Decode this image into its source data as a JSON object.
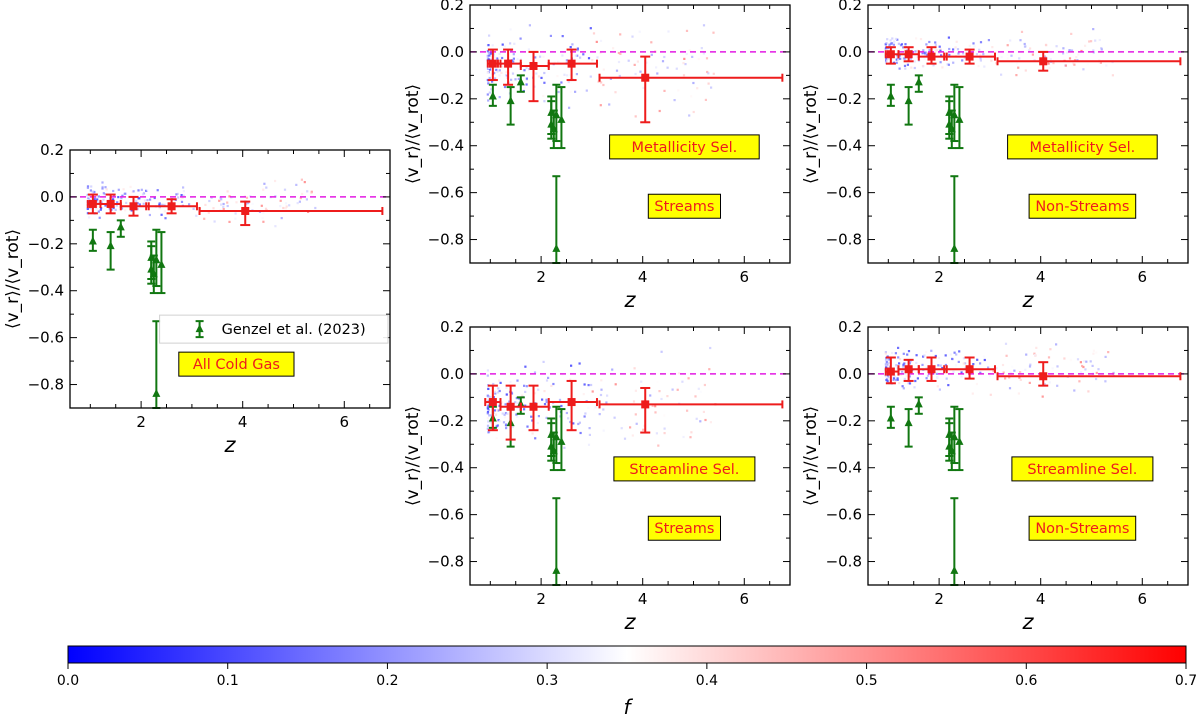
{
  "figure": {
    "ylabel": "⟨v_r⟩/⟨v_rot⟩",
    "xlabel": "z",
    "legend_label": "Genzel et al. (2023)",
    "legend_placement": "center-right",
    "reference_line": {
      "y": 0.0,
      "color": "#e31ae3",
      "style": "dashed"
    }
  },
  "colorbar": {
    "label": "f",
    "min": 0.0,
    "max": 0.7,
    "ticks": [
      0.0,
      0.1,
      0.2,
      0.3,
      0.4,
      0.5,
      0.6,
      0.7
    ],
    "tick_labels": [
      "0.0",
      "0.1",
      "0.2",
      "0.3",
      "0.4",
      "0.5",
      "0.6",
      "0.7"
    ],
    "colors": {
      "low": "#0000ff",
      "mid": "#ffffff",
      "high": "#ff0000"
    }
  },
  "colors": {
    "simulation": "#ee1c1c",
    "observation": "#117711",
    "tag_fill": "#ffff00",
    "tag_text": "#ee1c1c"
  },
  "chart_data": [
    {
      "type": "scatter",
      "id": "all",
      "tags": [
        "All Cold Gas"
      ],
      "show_legend": true,
      "ylim": [
        -0.9,
        0.2
      ],
      "xlim": [
        0.6,
        6.9
      ],
      "xticks": [
        2,
        4,
        6
      ],
      "xtick_labels": [
        "2",
        "4",
        "6"
      ],
      "yticks": [
        -0.8,
        -0.6,
        -0.4,
        -0.2,
        0.0,
        0.2
      ],
      "ytick_labels": [
        "−0.8",
        "−0.6",
        "−0.4",
        "−0.2",
        "0.0",
        "0.2"
      ],
      "cloud": {
        "center": -0.02,
        "spread": 0.03
      },
      "binned": [
        {
          "x": 1.05,
          "y": -0.03,
          "xlo": 0.95,
          "xhi": 1.2,
          "ylo": -0.07,
          "yhi": 0.01
        },
        {
          "x": 1.4,
          "y": -0.03,
          "xlo": 1.2,
          "xhi": 1.6,
          "ylo": -0.07,
          "yhi": 0.01
        },
        {
          "x": 1.85,
          "y": -0.04,
          "xlo": 1.6,
          "xhi": 2.15,
          "ylo": -0.08,
          "yhi": 0.0
        },
        {
          "x": 2.6,
          "y": -0.04,
          "xlo": 2.1,
          "xhi": 3.1,
          "ylo": -0.07,
          "yhi": -0.01
        },
        {
          "x": 4.05,
          "y": -0.06,
          "xlo": 3.15,
          "xhi": 6.75,
          "ylo": -0.12,
          "yhi": -0.02
        }
      ]
    },
    {
      "type": "scatter",
      "id": "metal-streams",
      "tags": [
        "Metallicity Sel.",
        "Streams"
      ],
      "show_legend": false,
      "ylim": [
        -0.9,
        0.2
      ],
      "xlim": [
        0.6,
        6.9
      ],
      "xticks": [
        2,
        4,
        6
      ],
      "xtick_labels": [
        "2",
        "4",
        "6"
      ],
      "yticks": [
        -0.8,
        -0.6,
        -0.4,
        -0.2,
        0.0,
        0.2
      ],
      "ytick_labels": [
        "−0.8",
        "−0.6",
        "−0.4",
        "−0.2",
        "0.0",
        "0.2"
      ],
      "cloud": {
        "center": -0.06,
        "spread": 0.06
      },
      "binned": [
        {
          "x": 1.05,
          "y": -0.05,
          "xlo": 0.95,
          "xhi": 1.2,
          "ylo": -0.12,
          "yhi": 0.01
        },
        {
          "x": 1.35,
          "y": -0.05,
          "xlo": 1.15,
          "xhi": 1.6,
          "ylo": -0.14,
          "yhi": 0.01
        },
        {
          "x": 1.85,
          "y": -0.06,
          "xlo": 1.6,
          "xhi": 2.15,
          "ylo": -0.21,
          "yhi": 0.0
        },
        {
          "x": 2.6,
          "y": -0.05,
          "xlo": 2.15,
          "xhi": 3.1,
          "ylo": -0.12,
          "yhi": 0.01
        },
        {
          "x": 4.05,
          "y": -0.11,
          "xlo": 3.15,
          "xhi": 6.75,
          "ylo": -0.3,
          "yhi": -0.02
        }
      ]
    },
    {
      "type": "scatter",
      "id": "metal-nonstreams",
      "tags": [
        "Metallicity Sel.",
        "Non-Streams"
      ],
      "show_legend": false,
      "ylim": [
        -0.9,
        0.2
      ],
      "xlim": [
        0.6,
        6.9
      ],
      "xticks": [
        2,
        4,
        6
      ],
      "xtick_labels": [
        "2",
        "4",
        "6"
      ],
      "yticks": [
        -0.8,
        -0.6,
        -0.4,
        -0.2,
        0.0,
        0.2
      ],
      "ytick_labels": [
        "−0.8",
        "−0.6",
        "−0.4",
        "−0.2",
        "0.0",
        "0.2"
      ],
      "cloud": {
        "center": -0.01,
        "spread": 0.03
      },
      "binned": [
        {
          "x": 1.05,
          "y": -0.01,
          "xlo": 0.95,
          "xhi": 1.2,
          "ylo": -0.05,
          "yhi": 0.02
        },
        {
          "x": 1.4,
          "y": -0.01,
          "xlo": 1.2,
          "xhi": 1.6,
          "ylo": -0.04,
          "yhi": 0.02
        },
        {
          "x": 1.85,
          "y": -0.02,
          "xlo": 1.6,
          "xhi": 2.15,
          "ylo": -0.05,
          "yhi": 0.02
        },
        {
          "x": 2.6,
          "y": -0.02,
          "xlo": 2.1,
          "xhi": 3.1,
          "ylo": -0.05,
          "yhi": 0.01
        },
        {
          "x": 4.05,
          "y": -0.04,
          "xlo": 3.15,
          "xhi": 6.75,
          "ylo": -0.08,
          "yhi": 0.0
        }
      ]
    },
    {
      "type": "scatter",
      "id": "stream-streams",
      "tags": [
        "Streamline Sel.",
        "Streams"
      ],
      "show_legend": false,
      "ylim": [
        -0.9,
        0.2
      ],
      "xlim": [
        0.6,
        6.9
      ],
      "xticks": [
        2,
        4,
        6
      ],
      "xtick_labels": [
        "2",
        "4",
        "6"
      ],
      "yticks": [
        -0.8,
        -0.6,
        -0.4,
        -0.2,
        0.0,
        0.2
      ],
      "ytick_labels": [
        "−0.8",
        "−0.6",
        "−0.4",
        "−0.2",
        "0.0",
        "0.2"
      ],
      "cloud": {
        "center": -0.13,
        "spread": 0.06
      },
      "binned": [
        {
          "x": 1.05,
          "y": -0.12,
          "xlo": 0.9,
          "xhi": 1.2,
          "ylo": -0.24,
          "yhi": -0.05
        },
        {
          "x": 1.4,
          "y": -0.14,
          "xlo": 1.2,
          "xhi": 1.6,
          "ylo": -0.28,
          "yhi": -0.05
        },
        {
          "x": 1.85,
          "y": -0.14,
          "xlo": 1.6,
          "xhi": 2.15,
          "ylo": -0.24,
          "yhi": -0.05
        },
        {
          "x": 2.6,
          "y": -0.12,
          "xlo": 2.15,
          "xhi": 3.1,
          "ylo": -0.24,
          "yhi": -0.03
        },
        {
          "x": 4.05,
          "y": -0.13,
          "xlo": 3.15,
          "xhi": 6.75,
          "ylo": -0.25,
          "yhi": -0.06
        }
      ]
    },
    {
      "type": "scatter",
      "id": "stream-nonstreams",
      "tags": [
        "Streamline Sel.",
        "Non-Streams"
      ],
      "show_legend": false,
      "ylim": [
        -0.9,
        0.2
      ],
      "xlim": [
        0.6,
        6.9
      ],
      "xticks": [
        2,
        4,
        6
      ],
      "xtick_labels": [
        "2",
        "4",
        "6"
      ],
      "yticks": [
        -0.8,
        -0.6,
        -0.4,
        -0.2,
        0.0,
        0.2
      ],
      "ytick_labels": [
        "−0.8",
        "−0.6",
        "−0.4",
        "−0.2",
        "0.0",
        "0.2"
      ],
      "cloud": {
        "center": 0.02,
        "spread": 0.04
      },
      "binned": [
        {
          "x": 1.05,
          "y": 0.01,
          "xlo": 0.95,
          "xhi": 1.2,
          "ylo": -0.04,
          "yhi": 0.07
        },
        {
          "x": 1.4,
          "y": 0.02,
          "xlo": 1.2,
          "xhi": 1.6,
          "ylo": -0.03,
          "yhi": 0.06
        },
        {
          "x": 1.85,
          "y": 0.02,
          "xlo": 1.6,
          "xhi": 2.15,
          "ylo": -0.03,
          "yhi": 0.07
        },
        {
          "x": 2.6,
          "y": 0.02,
          "xlo": 2.1,
          "xhi": 3.1,
          "ylo": -0.02,
          "yhi": 0.07
        },
        {
          "x": 4.05,
          "y": -0.01,
          "xlo": 3.15,
          "xhi": 6.75,
          "ylo": -0.05,
          "yhi": 0.05
        }
      ]
    }
  ],
  "observations": [
    {
      "x": 1.05,
      "y": -0.19,
      "ylo": -0.23,
      "yhi": -0.14
    },
    {
      "x": 1.4,
      "y": -0.21,
      "ylo": -0.31,
      "yhi": -0.15
    },
    {
      "x": 1.6,
      "y": -0.13,
      "ylo": -0.17,
      "yhi": -0.1
    },
    {
      "x": 2.2,
      "y": -0.26,
      "ylo": -0.35,
      "yhi": -0.19
    },
    {
      "x": 2.2,
      "y": -0.31,
      "ylo": -0.37,
      "yhi": -0.21
    },
    {
      "x": 2.25,
      "y": -0.33,
      "ylo": -0.41,
      "yhi": -0.25
    },
    {
      "x": 2.3,
      "y": -0.27,
      "ylo": -0.38,
      "yhi": -0.14
    },
    {
      "x": 2.4,
      "y": -0.29,
      "ylo": -0.41,
      "yhi": -0.15
    },
    {
      "x": 2.3,
      "y": -0.84,
      "ylo": -0.9,
      "yhi": -0.53
    }
  ]
}
